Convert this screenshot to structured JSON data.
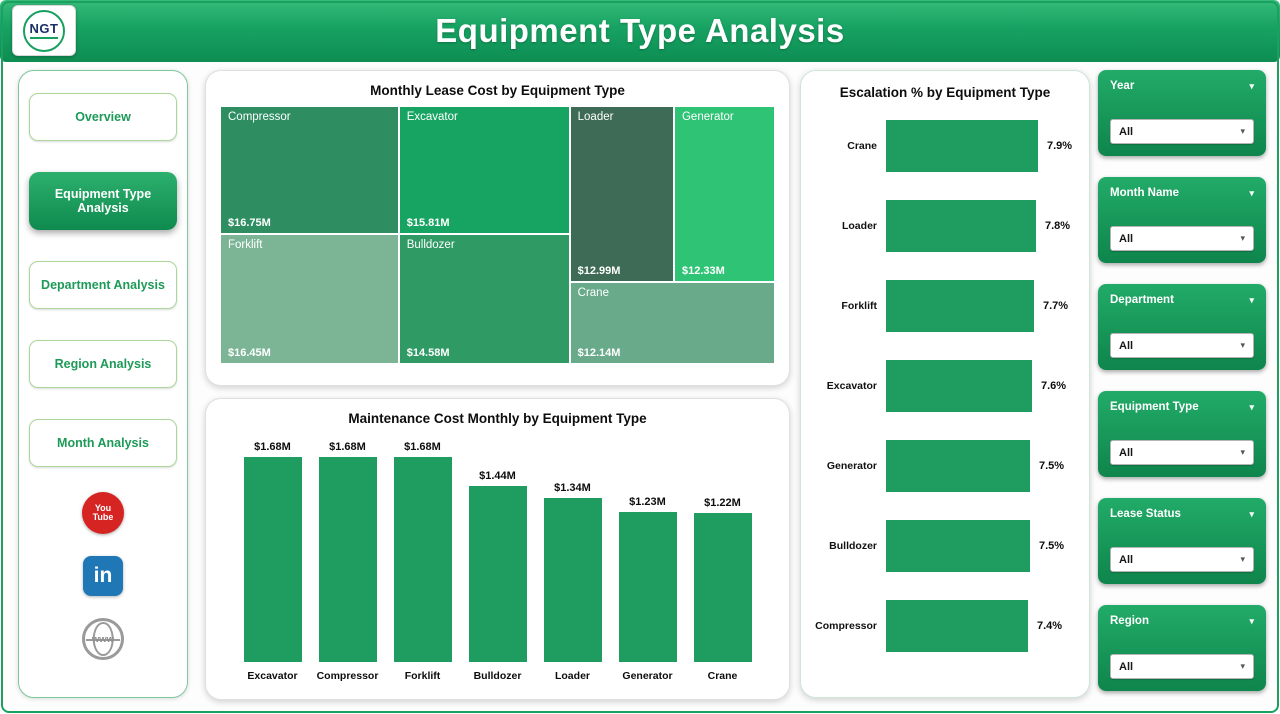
{
  "header": {
    "title": "Equipment Type Analysis",
    "logo_text": "NGT"
  },
  "icons": {
    "chevron_down": "▾"
  },
  "sidebar": {
    "items": [
      {
        "label": "Overview",
        "active": false
      },
      {
        "label": "Equipment Type Analysis",
        "active": true
      },
      {
        "label": "Department Analysis",
        "active": false
      },
      {
        "label": "Region Analysis",
        "active": false
      },
      {
        "label": "Month Analysis",
        "active": false
      }
    ],
    "social": {
      "youtube_line1": "You",
      "youtube_line2": "Tube",
      "linkedin": "in",
      "website": "www"
    }
  },
  "chart_data": [
    {
      "type": "treemap",
      "title": "Monthly Lease Cost by Equipment Type",
      "items": [
        {
          "label": "Compressor",
          "value_m": 16.75,
          "value": "$16.75M",
          "color": "#2e8e62"
        },
        {
          "label": "Excavator",
          "value_m": 15.81,
          "value": "$15.81M",
          "color": "#17a463"
        },
        {
          "label": "Loader",
          "value_m": 12.99,
          "value": "$12.99M",
          "color": "#3e6b55"
        },
        {
          "label": "Generator",
          "value_m": 12.33,
          "value": "$12.33M",
          "color": "#2fc475"
        },
        {
          "label": "Forklift",
          "value_m": 16.45,
          "value": "$16.45M",
          "color": "#7bb596"
        },
        {
          "label": "Bulldozer",
          "value_m": 14.58,
          "value": "$14.58M",
          "color": "#2f9a64"
        },
        {
          "label": "Crane",
          "value_m": 12.14,
          "value": "$12.14M",
          "color": "#68aa8a"
        }
      ]
    },
    {
      "type": "bar",
      "title": "Maintenance Cost Monthly by Equipment Type",
      "categories": [
        "Excavator",
        "Compressor",
        "Forklift",
        "Bulldozer",
        "Loader",
        "Generator",
        "Crane"
      ],
      "values": [
        1.68,
        1.68,
        1.68,
        1.44,
        1.34,
        1.23,
        1.22
      ],
      "labels": [
        "$1.68M",
        "$1.68M",
        "$1.68M",
        "$1.44M",
        "$1.34M",
        "$1.23M",
        "$1.22M"
      ],
      "color": "#1f9d60",
      "ylim": [
        0,
        1.68
      ]
    },
    {
      "type": "bar-horizontal",
      "title": "Escalation % by Equipment Type",
      "categories": [
        "Crane",
        "Loader",
        "Forklift",
        "Excavator",
        "Generator",
        "Bulldozer",
        "Compressor"
      ],
      "values": [
        7.9,
        7.8,
        7.7,
        7.6,
        7.5,
        7.5,
        7.4
      ],
      "labels": [
        "7.9%",
        "7.8%",
        "7.7%",
        "7.6%",
        "7.5%",
        "7.5%",
        "7.4%"
      ],
      "color": "#1f9d60",
      "xlim": [
        0,
        7.9
      ]
    }
  ],
  "filters": [
    {
      "label": "Year",
      "value": "All"
    },
    {
      "label": "Month Name",
      "value": "All"
    },
    {
      "label": "Department",
      "value": "All"
    },
    {
      "label": "Equipment Type",
      "value": "All"
    },
    {
      "label": "Lease Status",
      "value": "All"
    },
    {
      "label": "Region",
      "value": "All"
    }
  ],
  "theme": {
    "header_green_top": "#36bb7a",
    "header_green_bottom": "#0e8d52",
    "accent_green": "#1f9d60",
    "youtube_red": "#d62423",
    "linkedin_blue": "#2077b5"
  }
}
